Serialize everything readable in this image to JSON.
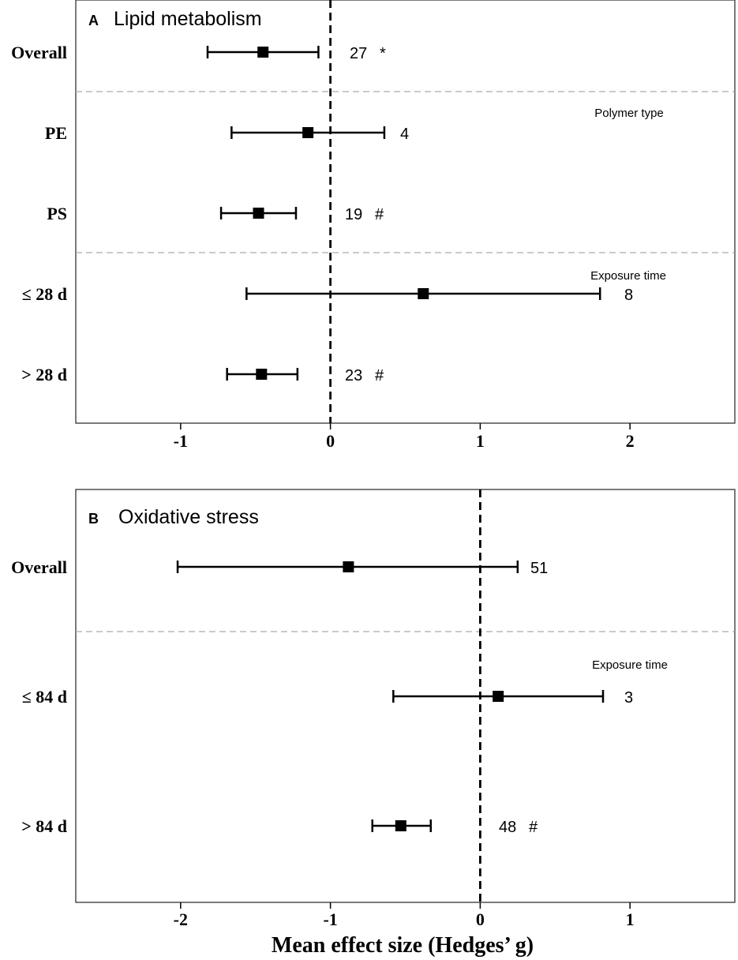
{
  "chart_data": [
    {
      "type": "forest",
      "panel": "A",
      "title": "Lipid metabolism",
      "xlim": [
        -1.7,
        2.7
      ],
      "xticks": [
        -1,
        0,
        1,
        2
      ],
      "xtick_labels": [
        "-1",
        "0",
        "1",
        "2"
      ],
      "reference_line": 0,
      "rows": [
        {
          "label": "Overall",
          "estimate": -0.45,
          "lower": -0.82,
          "upper": -0.08,
          "n": "27",
          "mark": "*"
        },
        {
          "label": "PE",
          "estimate": -0.15,
          "lower": -0.66,
          "upper": 0.36,
          "n": "4",
          "mark": ""
        },
        {
          "label": "PS",
          "estimate": -0.48,
          "lower": -0.73,
          "upper": -0.23,
          "n": "19",
          "mark": "#"
        },
        {
          "label": "≤ 28 d",
          "estimate": 0.62,
          "lower": -0.56,
          "upper": 1.8,
          "n": "8",
          "mark": ""
        },
        {
          "label": "> 28 d",
          "estimate": -0.46,
          "lower": -0.69,
          "upper": -0.22,
          "n": "23",
          "mark": "#"
        }
      ],
      "groups": [
        "Polymer type",
        "Exposure time"
      ]
    },
    {
      "type": "forest",
      "panel": "B",
      "title": "Oxidative stress",
      "xlim": [
        -2.7,
        1.7
      ],
      "xticks": [
        -2,
        -1,
        0,
        1
      ],
      "xtick_labels": [
        "-2",
        "-1",
        "0",
        "1"
      ],
      "reference_line": 0,
      "rows": [
        {
          "label": "Overall",
          "estimate": -0.88,
          "lower": -2.02,
          "upper": 0.25,
          "n": "51",
          "mark": ""
        },
        {
          "label": "≤ 84 d",
          "estimate": 0.12,
          "lower": -0.58,
          "upper": 0.82,
          "n": "3",
          "mark": ""
        },
        {
          "label": "> 84 d",
          "estimate": -0.53,
          "lower": -0.72,
          "upper": -0.33,
          "n": "48",
          "mark": "#"
        }
      ],
      "groups": [
        "Exposure time"
      ],
      "xlabel": "Mean effect size (Hedges’ g)"
    }
  ]
}
